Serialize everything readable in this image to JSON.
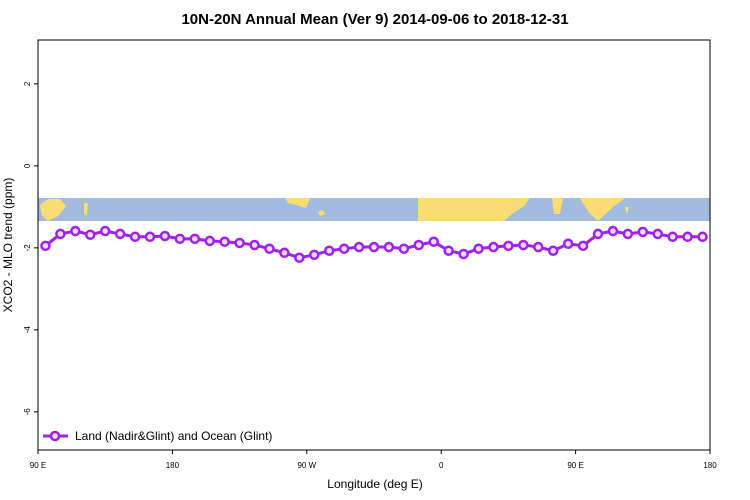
{
  "chart_data": {
    "type": "line",
    "title": "10N-20N Annual Mean (Ver 9)   2014-09-06 to 2018-12-31",
    "x_label": "Longitude (deg E)",
    "y_label": "XCO2 - MLO trend (ppm)",
    "x": [
      95,
      105,
      115,
      125,
      135,
      145,
      155,
      165,
      175,
      185,
      195,
      205,
      215,
      225,
      235,
      245,
      255,
      265,
      275,
      285,
      295,
      305,
      315,
      325,
      335,
      345,
      355,
      365,
      375,
      385,
      395,
      405,
      415,
      425,
      435,
      445,
      455,
      465,
      475,
      485,
      495,
      505,
      515,
      525,
      535
    ],
    "series": [
      {
        "name": "Land (Nadir&Glint) and Ocean (Glint)",
        "color": "#a020f0",
        "values": [
          -1.95,
          -1.66,
          -1.59,
          -1.68,
          -1.59,
          -1.66,
          -1.73,
          -1.73,
          -1.71,
          -1.78,
          -1.78,
          -1.83,
          -1.85,
          -1.88,
          -1.93,
          -2.02,
          -2.12,
          -2.24,
          -2.17,
          -2.07,
          -2.02,
          -1.98,
          -1.98,
          -1.98,
          -2.02,
          -1.93,
          -1.85,
          -2.07,
          -2.15,
          -2.02,
          -1.98,
          -1.95,
          -1.93,
          -1.98,
          -2.07,
          -1.9,
          -1.95,
          -1.66,
          -1.59,
          -1.66,
          -1.61,
          -1.66,
          -1.73,
          -1.73,
          -1.73
        ]
      }
    ],
    "xlim": [
      90,
      540
    ],
    "xticks": [
      {
        "value": 90,
        "label": "90 E"
      },
      180,
      {
        "value": 270,
        "label": "90 W"
      },
      {
        "value": 360,
        "label": "0"
      },
      {
        "value": 450,
        "label": "90 E"
      },
      {
        "value": 540,
        "label": "180"
      }
    ],
    "ylim": [
      -6.93,
      3.07
    ],
    "yticks": [
      -6,
      -4,
      -2,
      0,
      2
    ],
    "legend": "lower-left"
  }
}
